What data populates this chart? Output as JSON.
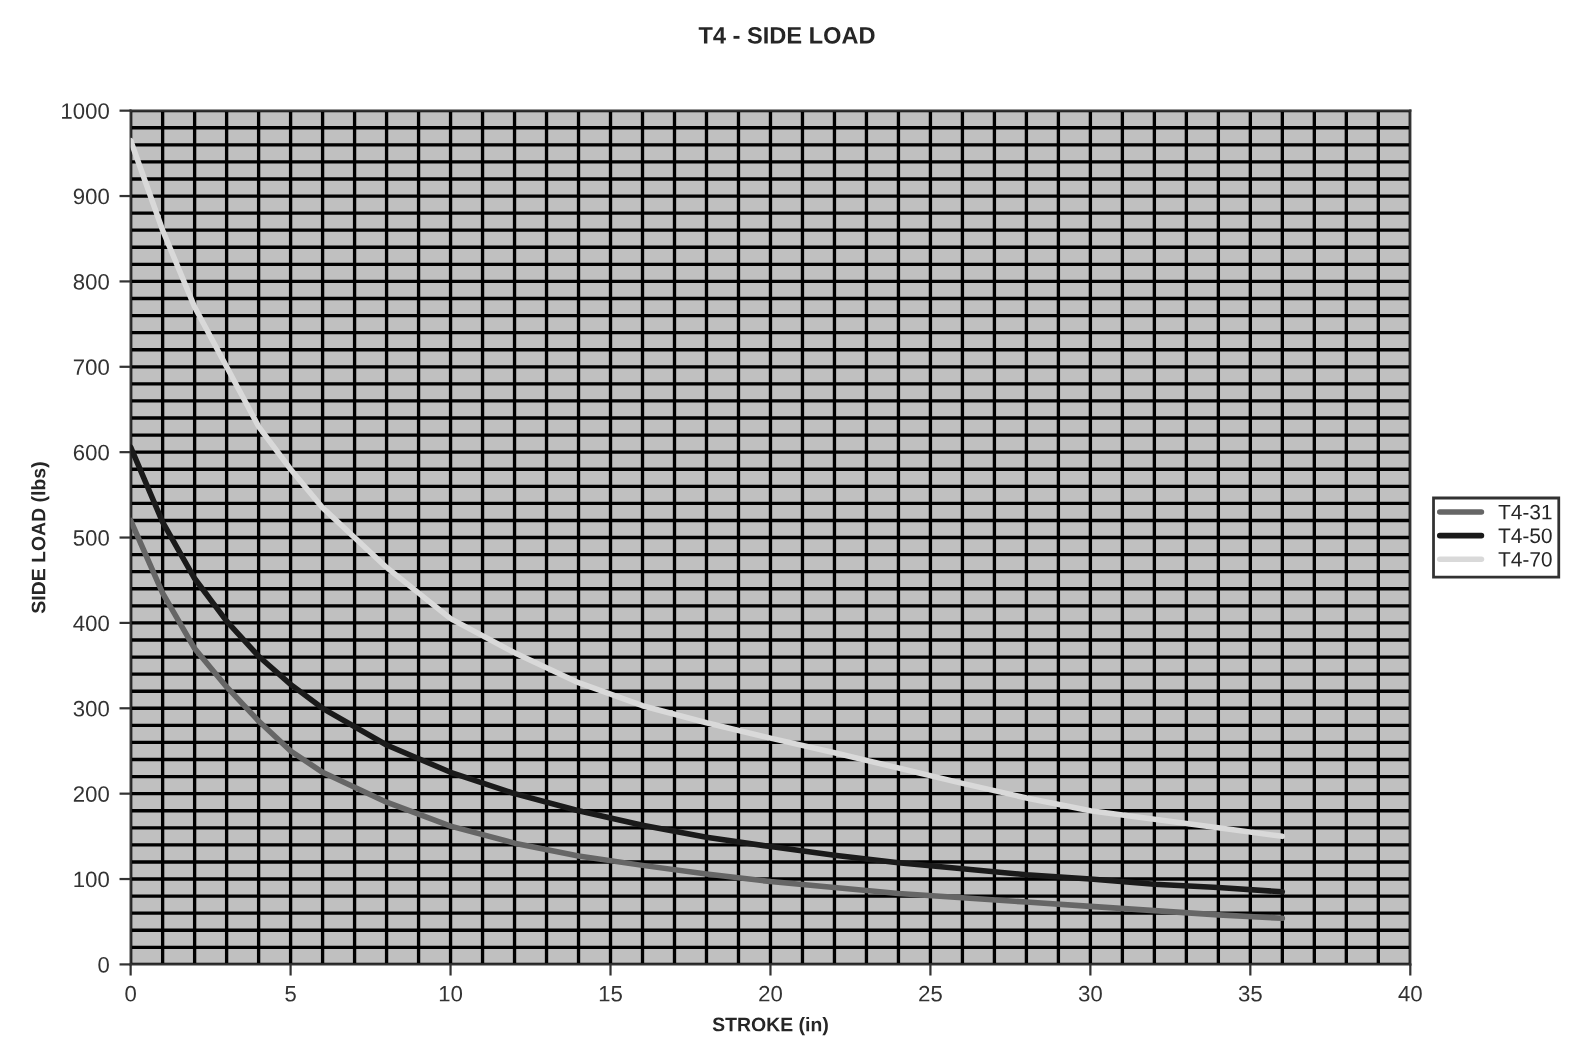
{
  "chart_data": {
    "type": "line",
    "title": "T4 - SIDE LOAD",
    "xlabel": "STROKE (in)",
    "ylabel": "SIDE LOAD (lbs)",
    "x": [
      0,
      1,
      2,
      3,
      4,
      5,
      6,
      8,
      10,
      12,
      14,
      16,
      18,
      20,
      22,
      24,
      26,
      28,
      30,
      32,
      34,
      36
    ],
    "series": [
      {
        "name": "T4-31",
        "color": "#666666",
        "values": [
          520,
          435,
          370,
          325,
          285,
          250,
          225,
          190,
          162,
          142,
          127,
          116,
          106,
          97,
          90,
          83,
          78,
          73,
          68,
          63,
          58,
          54
        ]
      },
      {
        "name": "T4-50",
        "color": "#1a1a1a",
        "values": [
          606,
          518,
          452,
          402,
          361,
          328,
          300,
          257,
          225,
          200,
          180,
          163,
          149,
          138,
          128,
          119,
          112,
          105,
          100,
          94,
          90,
          85
        ]
      },
      {
        "name": "T4-70",
        "color": "#d9d9d9",
        "values": [
          965,
          860,
          770,
          700,
          630,
          580,
          535,
          465,
          405,
          365,
          330,
          303,
          283,
          265,
          248,
          230,
          212,
          195,
          180,
          170,
          160,
          150
        ]
      }
    ],
    "xlim": [
      0,
      40
    ],
    "xticks": [
      0,
      5,
      10,
      15,
      20,
      25,
      30,
      35,
      40
    ],
    "ylim": [
      0,
      1000
    ],
    "yticks": [
      0,
      100,
      200,
      300,
      400,
      500,
      600,
      700,
      800,
      900,
      1000
    ],
    "grid": true,
    "legend": "right",
    "marker": "none",
    "line_style": "solid"
  }
}
